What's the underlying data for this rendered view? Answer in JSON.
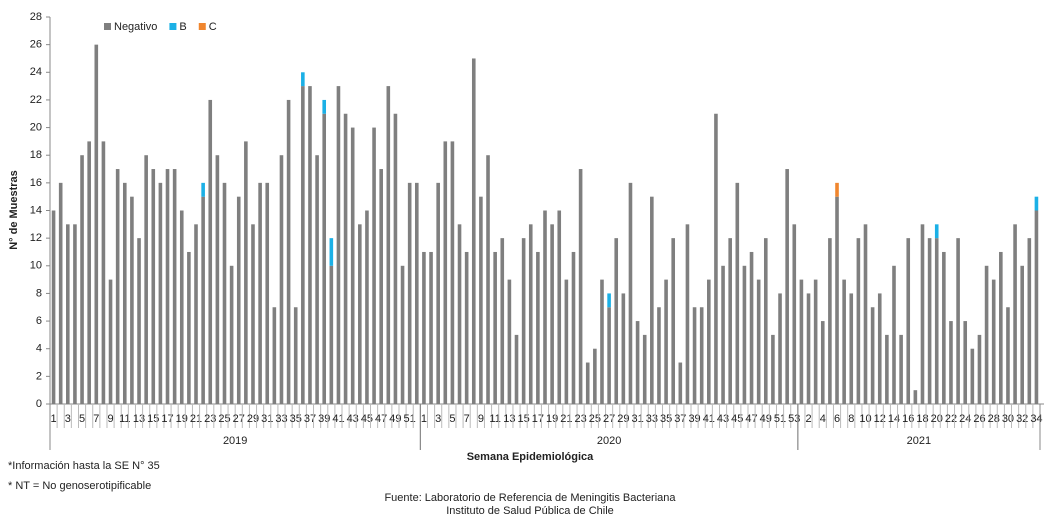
{
  "chart_data": {
    "type": "stacked_bar",
    "y_label": "N° de Muestras",
    "x_label": "Semana Epidemiológica",
    "notes": [
      "*Información  hasta la SE N° 35",
      "* NT = No genoserotipificable"
    ],
    "source": [
      "Fuente: Laboratorio de Referencia  de Meningitis Bacteriana",
      "Instituto de Salud Pública de Chile"
    ],
    "legend": "top-left",
    "groups": [
      {
        "label": "2019",
        "count": 52
      },
      {
        "label": "2020",
        "count": 53
      },
      {
        "label": "2021",
        "count": 34
      }
    ],
    "categories": [
      "1",
      null,
      "3",
      null,
      "5",
      null,
      "7",
      null,
      "9",
      null,
      "11",
      null,
      "13",
      null,
      "15",
      null,
      "17",
      null,
      "19",
      null,
      "21",
      null,
      "23",
      null,
      "25",
      null,
      "27",
      null,
      "29",
      null,
      "31",
      null,
      "33",
      null,
      "35",
      null,
      "37",
      null,
      "39",
      null,
      "41",
      null,
      "43",
      null,
      "45",
      null,
      "47",
      null,
      "49",
      null,
      "51",
      null,
      "1",
      null,
      "3",
      null,
      "5",
      null,
      "7",
      null,
      "9",
      null,
      "11",
      null,
      "13",
      null,
      "15",
      null,
      "17",
      null,
      "19",
      null,
      "21",
      null,
      "23",
      null,
      "25",
      null,
      "27",
      null,
      "29",
      null,
      "31",
      null,
      "33",
      null,
      "35",
      null,
      "37",
      null,
      "39",
      null,
      "41",
      null,
      "43",
      null,
      "45",
      null,
      "47",
      null,
      "49",
      null,
      "51",
      null,
      "53",
      null,
      "2",
      null,
      "4",
      null,
      "6",
      null,
      "8",
      null,
      "10",
      null,
      "12",
      null,
      "14",
      null,
      "16",
      null,
      "18",
      null,
      "20",
      null,
      "22",
      null,
      "24",
      null,
      "26",
      null,
      "28",
      null,
      "30",
      null,
      "32",
      null,
      "34"
    ],
    "series": [
      {
        "name": "Negativo",
        "color": "#7f7f7f",
        "values": [
          14,
          16,
          13,
          13,
          18,
          19,
          26,
          19,
          9,
          17,
          16,
          15,
          12,
          18,
          17,
          16,
          17,
          17,
          14,
          11,
          13,
          15,
          22,
          18,
          16,
          10,
          15,
          19,
          13,
          16,
          16,
          7,
          18,
          22,
          7,
          23,
          23,
          18,
          21,
          10,
          23,
          21,
          20,
          13,
          14,
          20,
          17,
          23,
          21,
          10,
          16,
          16,
          11,
          11,
          16,
          19,
          19,
          13,
          11,
          25,
          15,
          18,
          11,
          12,
          9,
          5,
          12,
          13,
          11,
          14,
          13,
          14,
          9,
          11,
          17,
          3,
          4,
          9,
          7,
          12,
          8,
          16,
          6,
          5,
          15,
          7,
          9,
          12,
          3,
          13,
          7,
          7,
          9,
          21,
          10,
          12,
          16,
          10,
          11,
          9,
          12,
          5,
          8,
          17,
          13,
          9,
          8,
          9,
          6,
          12,
          15,
          9,
          8,
          12,
          13,
          7,
          8,
          5,
          10,
          5,
          12,
          1,
          13,
          12,
          12,
          11,
          6,
          12,
          6,
          4,
          5,
          10,
          9,
          11,
          7,
          13,
          10,
          12,
          14
        ]
      },
      {
        "name": "B",
        "color": "#1bb0e6",
        "values": [
          0,
          0,
          0,
          0,
          0,
          0,
          0,
          0,
          0,
          0,
          0,
          0,
          0,
          0,
          0,
          0,
          0,
          0,
          0,
          0,
          0,
          1,
          0,
          0,
          0,
          0,
          0,
          0,
          0,
          0,
          0,
          0,
          0,
          0,
          0,
          1,
          0,
          0,
          1,
          2,
          0,
          0,
          0,
          0,
          0,
          0,
          0,
          0,
          0,
          0,
          0,
          0,
          0,
          0,
          0,
          0,
          0,
          0,
          0,
          0,
          0,
          0,
          0,
          0,
          0,
          0,
          0,
          0,
          0,
          0,
          0,
          0,
          0,
          0,
          0,
          0,
          0,
          0,
          1,
          0,
          0,
          0,
          0,
          0,
          0,
          0,
          0,
          0,
          0,
          0,
          0,
          0,
          0,
          0,
          0,
          0,
          0,
          0,
          0,
          0,
          0,
          0,
          0,
          0,
          0,
          0,
          0,
          0,
          0,
          0,
          0,
          0,
          0,
          0,
          0,
          0,
          0,
          0,
          0,
          0,
          0,
          0,
          0,
          0,
          1,
          0,
          0,
          0,
          0,
          0,
          0,
          0,
          0,
          0,
          0,
          0,
          0,
          0,
          1
        ]
      },
      {
        "name": "C",
        "color": "#f0862e",
        "values": [
          0,
          0,
          0,
          0,
          0,
          0,
          0,
          0,
          0,
          0,
          0,
          0,
          0,
          0,
          0,
          0,
          0,
          0,
          0,
          0,
          0,
          0,
          0,
          0,
          0,
          0,
          0,
          0,
          0,
          0,
          0,
          0,
          0,
          0,
          0,
          0,
          0,
          0,
          0,
          0,
          0,
          0,
          0,
          0,
          0,
          0,
          0,
          0,
          0,
          0,
          0,
          0,
          0,
          0,
          0,
          0,
          0,
          0,
          0,
          0,
          0,
          0,
          0,
          0,
          0,
          0,
          0,
          0,
          0,
          0,
          0,
          0,
          0,
          0,
          0,
          0,
          0,
          0,
          0,
          0,
          0,
          0,
          0,
          0,
          0,
          0,
          0,
          0,
          0,
          0,
          0,
          0,
          0,
          0,
          0,
          0,
          0,
          0,
          0,
          0,
          0,
          0,
          0,
          0,
          0,
          0,
          0,
          0,
          0,
          0,
          1,
          0,
          0,
          0,
          0,
          0,
          0,
          0,
          0,
          0,
          0,
          0,
          0,
          0,
          0,
          0,
          0,
          0,
          0,
          0,
          0,
          0,
          0,
          0,
          0,
          0,
          0,
          0,
          0
        ]
      }
    ],
    "ylim": [
      0,
      28
    ],
    "yticks": [
      0,
      2,
      4,
      6,
      8,
      10,
      12,
      14,
      16,
      18,
      20,
      22,
      24,
      26,
      28
    ]
  }
}
